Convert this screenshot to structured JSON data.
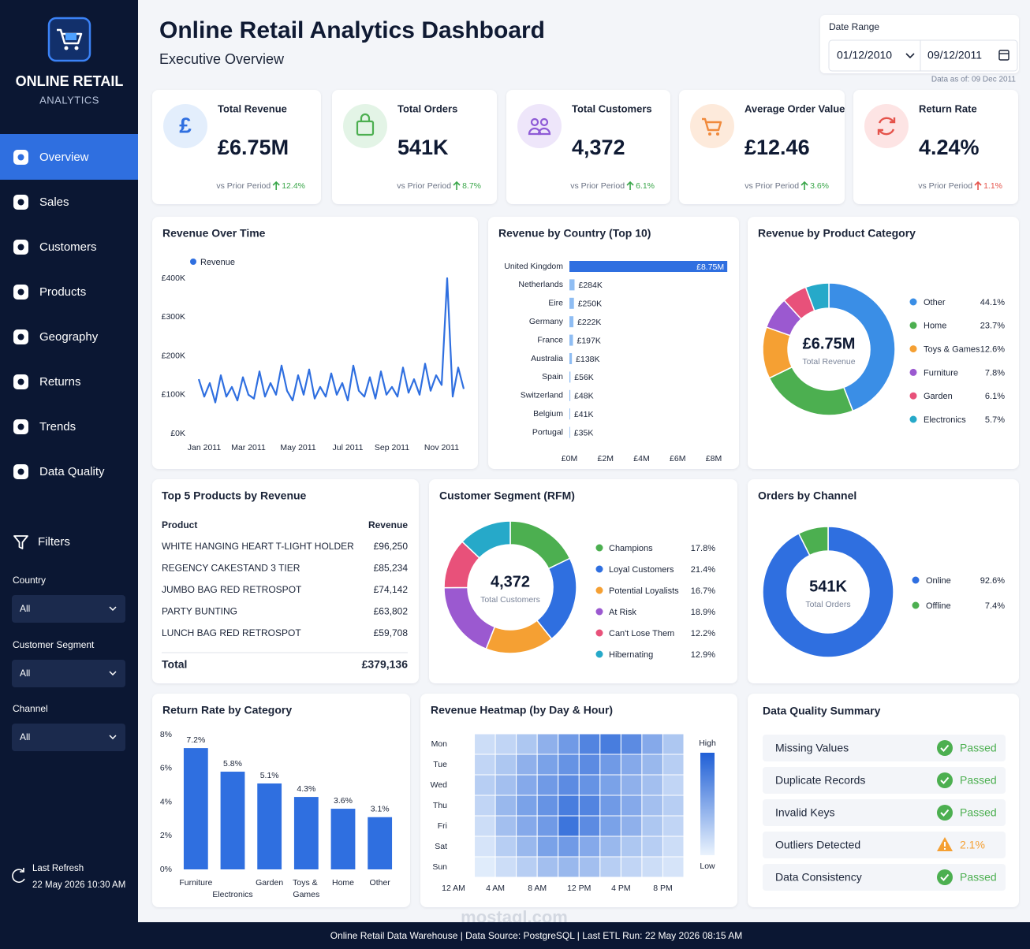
{
  "sidebar": {
    "brand": "ONLINE RETAIL",
    "brand_sub": "ANALYTICS",
    "nav": [
      "Overview",
      "Sales",
      "Customers",
      "Products",
      "Geography",
      "Returns",
      "Trends",
      "Data Quality"
    ],
    "active": 0,
    "filters_title": "Filters",
    "filters": [
      {
        "label": "Country",
        "value": "All"
      },
      {
        "label": "Customer Segment",
        "value": "All"
      },
      {
        "label": "Channel",
        "value": "All"
      }
    ],
    "refresh_label": "Last Refresh",
    "refresh_time": "22 May 2026 10:30 AM"
  },
  "header": {
    "title": "Online Retail Analytics Dashboard",
    "subtitle": "Executive Overview",
    "date_range_label": "Date Range",
    "date_start": "01/12/2010",
    "date_end": "09/12/2011",
    "data_as_of": "Data as of: 09 Dec 2011"
  },
  "kpis": [
    {
      "icon": "£",
      "label": "Total Revenue",
      "value": "£6.75M",
      "compare": "vs Prior Period",
      "change": "12.4%",
      "trend": "up",
      "sentiment": "positive"
    },
    {
      "label": "Total Orders",
      "value": "541K",
      "compare": "vs Prior Period",
      "change": "8.7%",
      "trend": "up",
      "sentiment": "positive"
    },
    {
      "label": "Total Customers",
      "value": "4,372",
      "compare": "vs Prior Period",
      "change": "6.1%",
      "trend": "up",
      "sentiment": "positive"
    },
    {
      "label": "Average Order Value",
      "value": "£12.46",
      "compare": "vs Prior Period",
      "change": "3.6%",
      "trend": "up",
      "sentiment": "positive"
    },
    {
      "label": "Return Rate",
      "value": "4.24%",
      "compare": "vs Prior Period",
      "change": "1.1%",
      "trend": "up",
      "sentiment": "negative"
    }
  ],
  "chart_data": [
    {
      "type": "line",
      "title": "Revenue Over Time",
      "categories": [
        null,
        "Jan 2011",
        null,
        null,
        null,
        null,
        null,
        null,
        null,
        "Mar 2011",
        null,
        null,
        null,
        null,
        null,
        null,
        null,
        null,
        "May 2011",
        null,
        null,
        null,
        null,
        null,
        null,
        null,
        null,
        "Jul 2011",
        null,
        null,
        null,
        null,
        null,
        null,
        null,
        "Sep 2011",
        null,
        null,
        null,
        null,
        null,
        null,
        null,
        null,
        "Nov 2011",
        null,
        null,
        null,
        null
      ],
      "series": [
        {
          "name": "Revenue",
          "color": "#2f6fe0",
          "values": [
            140000,
            95000,
            130000,
            80000,
            150000,
            95000,
            120000,
            85000,
            145000,
            100000,
            90000,
            160000,
            95000,
            130000,
            100000,
            175000,
            110000,
            85000,
            150000,
            100000,
            165000,
            90000,
            120000,
            95000,
            155000,
            100000,
            130000,
            85000,
            175000,
            110000,
            95000,
            145000,
            90000,
            160000,
            100000,
            120000,
            95000,
            170000,
            105000,
            140000,
            100000,
            180000,
            110000,
            150000,
            125000,
            400000,
            95000,
            170000,
            115000
          ]
        }
      ],
      "ylim": [
        0,
        400000
      ],
      "yticks": [
        {
          "value": 0,
          "label": "£0K"
        },
        {
          "value": 100000,
          "label": "£100K"
        },
        {
          "value": 200000,
          "label": "£200K"
        },
        {
          "value": 300000,
          "label": "£300K"
        },
        {
          "value": 400000,
          "label": "£400K"
        }
      ]
    },
    {
      "type": "bar",
      "orientation": "horizontal",
      "title": "Revenue by Country (Top 10)",
      "categories": [
        "United Kingdom",
        "Netherlands",
        "Eire",
        "Germany",
        "France",
        "Australia",
        "Spain",
        "Switzerland",
        "Belgium",
        "Portugal"
      ],
      "values": [
        8750000,
        284000,
        250000,
        222000,
        197000,
        138000,
        56000,
        48000,
        41000,
        35000
      ],
      "value_labels": [
        "£8.75M",
        "£284K",
        "£250K",
        "£222K",
        "£197K",
        "£138K",
        "£56K",
        "£48K",
        "£41K",
        "£35K"
      ],
      "colors": [
        "#2f6fe0",
        "#8fbdf3",
        "#8fbdf3",
        "#8fbdf3",
        "#8fbdf3",
        "#8fbdf3",
        "#8fbdf3",
        "#8fbdf3",
        "#8fbdf3",
        "#8fbdf3"
      ],
      "xlim": [
        0,
        8000000
      ],
      "xticks": [
        {
          "value": 0,
          "label": "£0M"
        },
        {
          "value": 2000000,
          "label": "£2M"
        },
        {
          "value": 4000000,
          "label": "£4M"
        },
        {
          "value": 6000000,
          "label": "£6M"
        },
        {
          "value": 8000000,
          "label": "£8M"
        }
      ]
    },
    {
      "type": "donut",
      "title": "Revenue by Product Category",
      "center_value": "£6.75M",
      "center_label": "Total Revenue",
      "categories": [
        "Other",
        "Home",
        "Toys & Games",
        "Furniture",
        "Garden",
        "Electronics"
      ],
      "values": [
        44.1,
        23.7,
        12.6,
        7.8,
        6.1,
        5.7
      ],
      "value_labels": [
        "44.1%",
        "23.7%",
        "12.6%",
        "7.8%",
        "6.1%",
        "5.7%"
      ],
      "colors": [
        "#3a8ee6",
        "#4caf50",
        "#f5a033",
        "#9b59d0",
        "#e8517a",
        "#26a9c9"
      ]
    },
    {
      "type": "donut",
      "title": "Customer Segment (RFM)",
      "center_value": "4,372",
      "center_label": "Total Customers",
      "categories": [
        "Champions",
        "Loyal Customers",
        "Potential Loyalists",
        "At Risk",
        "Can't Lose Them",
        "Hibernating"
      ],
      "values": [
        17.8,
        21.4,
        16.7,
        18.9,
        12.2,
        12.9
      ],
      "value_labels": [
        "17.8%",
        "21.4%",
        "16.7%",
        "18.9%",
        "12.2%",
        "12.9%"
      ],
      "colors": [
        "#4caf50",
        "#2f6fe0",
        "#f5a033",
        "#9b59d0",
        "#e8517a",
        "#26a9c9"
      ]
    },
    {
      "type": "donut",
      "title": "Orders by Channel",
      "center_value": "541K",
      "center_label": "Total Orders",
      "categories": [
        "Online",
        "Offline"
      ],
      "values": [
        92.6,
        7.4
      ],
      "value_labels": [
        "92.6%",
        "7.4%"
      ],
      "colors": [
        "#2f6fe0",
        "#4caf50"
      ]
    },
    {
      "type": "bar",
      "orientation": "vertical",
      "title": "Return Rate by Category",
      "categories": [
        "Furniture",
        "Electronics",
        "Garden",
        "Toys & Games",
        "Home",
        "Other"
      ],
      "values": [
        7.2,
        5.8,
        5.1,
        4.3,
        3.6,
        3.1
      ],
      "value_labels": [
        "7.2%",
        "5.8%",
        "5.1%",
        "4.3%",
        "3.6%",
        "3.1%"
      ],
      "color": "#2f6fe0",
      "ylim": [
        0,
        8
      ],
      "yticks": [
        {
          "value": 0,
          "label": "0%"
        },
        {
          "value": 2,
          "label": "2%"
        },
        {
          "value": 4,
          "label": "4%"
        },
        {
          "value": 6,
          "label": "6%"
        },
        {
          "value": 8,
          "label": "8%"
        }
      ]
    },
    {
      "type": "heatmap",
      "title": "Revenue Heatmap (by Day & Hour)",
      "categories": [
        "Mon",
        "Tue",
        "Wed",
        "Thu",
        "Fri",
        "Sat",
        "Sun"
      ],
      "x": [
        2,
        4,
        6,
        8,
        10,
        12,
        14,
        16,
        18,
        20
      ],
      "values": [
        [
          15,
          20,
          30,
          45,
          60,
          75,
          80,
          70,
          50,
          30
        ],
        [
          20,
          30,
          45,
          55,
          65,
          70,
          60,
          50,
          40,
          25
        ],
        [
          25,
          35,
          50,
          60,
          70,
          65,
          55,
          45,
          35,
          20
        ],
        [
          20,
          40,
          55,
          65,
          80,
          75,
          60,
          50,
          35,
          25
        ],
        [
          15,
          35,
          50,
          60,
          85,
          70,
          55,
          45,
          30,
          20
        ],
        [
          10,
          25,
          40,
          55,
          60,
          50,
          40,
          30,
          25,
          15
        ],
        [
          5,
          15,
          25,
          35,
          40,
          35,
          25,
          20,
          15,
          10
        ]
      ],
      "xlim": [
        0,
        22
      ],
      "xticks": [
        {
          "value": 0,
          "label": "12 AM"
        },
        {
          "value": 4,
          "label": "4 AM"
        },
        {
          "value": 8,
          "label": "8 AM"
        },
        {
          "value": 12,
          "label": "12 PM"
        },
        {
          "value": 16,
          "label": "4 PM"
        },
        {
          "value": 20,
          "label": "8 PM"
        }
      ],
      "clim": [
        0,
        100
      ],
      "color_low": "#eaf3fd",
      "color_high": "#1f5fd6",
      "legend_high": "High",
      "legend_low": "Low"
    }
  ],
  "top_products": {
    "title": "Top 5 Products by Revenue",
    "columns": [
      "Product",
      "Revenue"
    ],
    "rows": [
      [
        "WHITE HANGING HEART T-LIGHT HOLDER",
        "£96,250"
      ],
      [
        "REGENCY CAKESTAND 3 TIER",
        "£85,234"
      ],
      [
        "JUMBO BAG RED RETROSPOT",
        "£74,142"
      ],
      [
        "PARTY BUNTING",
        "£63,802"
      ],
      [
        "LUNCH BAG RED RETROSPOT",
        "£59,708"
      ]
    ],
    "total": [
      "Total",
      "£379,136"
    ]
  },
  "data_quality": {
    "title": "Data Quality Summary",
    "items": [
      {
        "name": "Missing Values",
        "status": "Passed",
        "state": "ok"
      },
      {
        "name": "Duplicate Records",
        "status": "Passed",
        "state": "ok"
      },
      {
        "name": "Invalid Keys",
        "status": "Passed",
        "state": "ok"
      },
      {
        "name": "Outliers Detected",
        "status": "2.1%",
        "state": "warn"
      },
      {
        "name": "Data Consistency",
        "status": "Passed",
        "state": "ok"
      }
    ]
  },
  "footer": "Online Retail Data Warehouse | Data Source: PostgreSQL | Last ETL Run: 22 May 2026 08:15 AM",
  "watermark": "mostaql.com"
}
